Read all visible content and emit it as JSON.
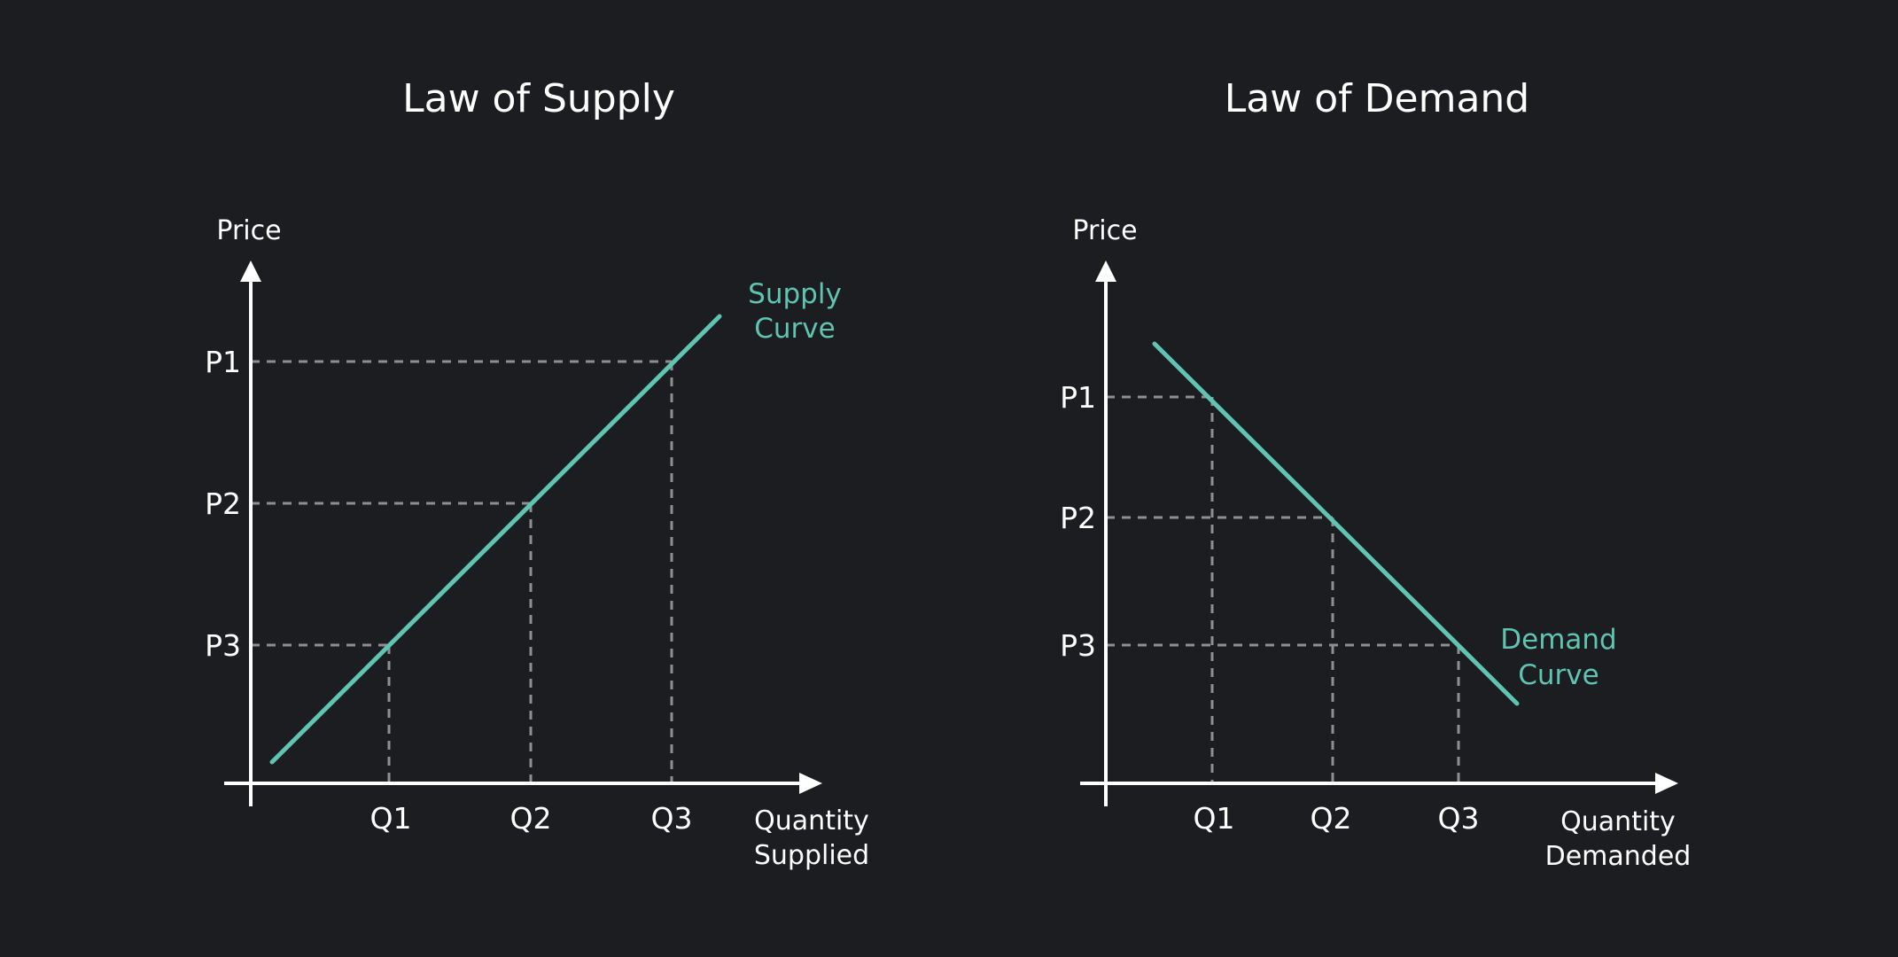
{
  "colors": {
    "background": "#1c1d20",
    "axis": "#ffffff",
    "text": "#ffffff",
    "guide_lines": "#8f8f8f",
    "curve": "#5fc4b1"
  },
  "supply_panel": {
    "title": "Law of Supply",
    "y_axis_label": "Price",
    "x_axis_label_line1": "Quantity",
    "x_axis_label_line2": "Supplied",
    "price_levels": [
      "P1",
      "P2",
      "P3"
    ],
    "quantity_levels": [
      "Q1",
      "Q2",
      "Q3"
    ],
    "curve_label_line1": "Supply",
    "curve_label_line2": "Curve"
  },
  "demand_panel": {
    "title": "Law of Demand",
    "y_axis_label": "Price",
    "x_axis_label_line1": "Quantity",
    "x_axis_label_line2": "Demanded",
    "price_levels": [
      "P1",
      "P2",
      "P3"
    ],
    "quantity_levels": [
      "Q1",
      "Q2",
      "Q3"
    ],
    "curve_label_line1": "Demand",
    "curve_label_line2": "Curve"
  }
}
